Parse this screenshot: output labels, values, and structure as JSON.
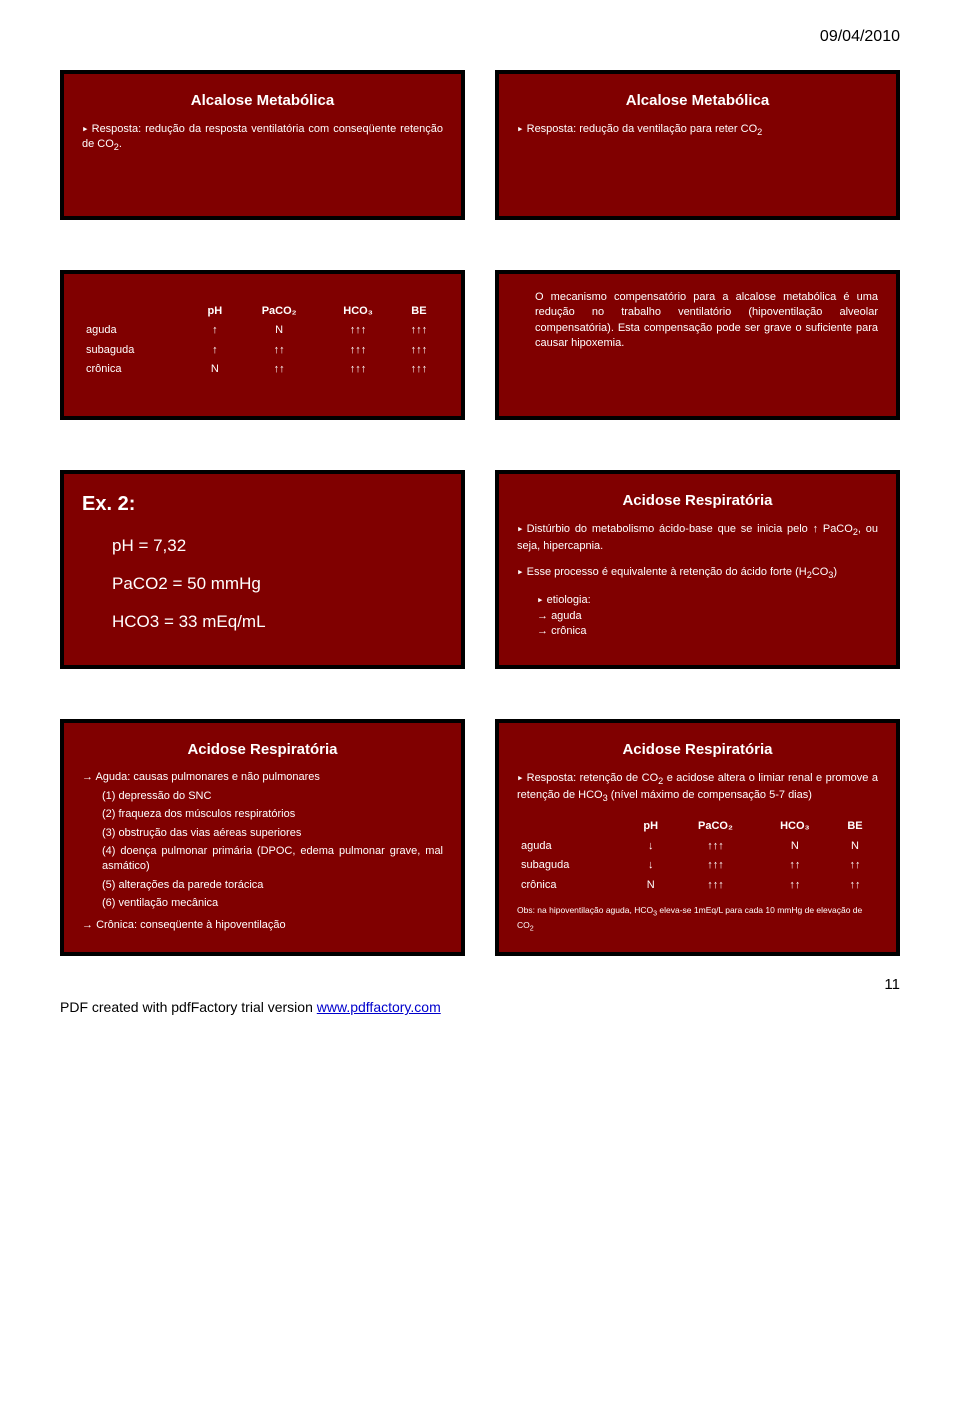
{
  "date": "09/04/2010",
  "pageNumber": "11",
  "pdfFooterText": "PDF created with pdfFactory trial version ",
  "pdfFooterLink": "www.pdffactory.com",
  "colors": {
    "slideBg": "#800000",
    "slideBorder": "#000000",
    "slideText": "#ffffff",
    "link": "#0000cc"
  },
  "slide1": {
    "title": "Alcalose Metabólica",
    "body": "Resposta: redução da resposta ventilatória com conseqüente retenção de CO",
    "sub": "2",
    "bodyEnd": "."
  },
  "slide2": {
    "title": "Alcalose Metabólica",
    "body": "Resposta: redução da ventilação para reter CO",
    "sub": "2"
  },
  "slide3": {
    "headers": [
      "",
      "pH",
      "PaCO₂",
      "HCO₃",
      "BE"
    ],
    "rows": [
      [
        "aguda",
        "↑",
        "N",
        "↑↑↑",
        "↑↑↑"
      ],
      [
        "subaguda",
        "↑",
        "↑↑",
        "↑↑↑",
        "↑↑↑"
      ],
      [
        "crônica",
        "N",
        "↑↑",
        "↑↑↑",
        "↑↑↑"
      ]
    ]
  },
  "slide4": {
    "body": "O mecanismo compensatório para a alcalose metabólica é uma redução no trabalho ventilatório (hipoventilação alveolar compensatória). Esta compensação pode ser grave o suficiente para causar hipoxemia."
  },
  "slide5": {
    "title": "Ex. 2:",
    "lines": [
      "pH = 7,32",
      "PaCO2 = 50 mmHg",
      "HCO3 = 33 mEq/mL"
    ]
  },
  "slide6": {
    "title": "Acidose Respiratória",
    "p1a": "Distúrbio do metabolismo ácido-base que se inicia pelo ↑ PaCO",
    "p1sub": "2",
    "p1b": ", ou seja, hipercapnia.",
    "p2a": "Esse processo é equivalente à retenção do ácido forte (H",
    "p2sub1": "2",
    "p2mid": "CO",
    "p2sub2": "3",
    "p2b": ")",
    "etioLabel": "etiologia:",
    "etioItems": [
      "aguda",
      "crônica"
    ]
  },
  "slide7": {
    "title": "Acidose Respiratória",
    "lead": "Aguda: causas pulmonares e não pulmonares",
    "items": [
      "(1) depressão do SNC",
      "(2) fraqueza dos músculos respiratórios",
      "(3) obstrução das vias aéreas superiores",
      "(4) doença pulmonar primária (DPOC, edema pulmonar grave, mal asmático)",
      "(5) alterações da parede torácica",
      "(6) ventilação mecânica"
    ],
    "tail": "Crônica: conseqüente à hipoventilação"
  },
  "slide8": {
    "title": "Acidose Respiratória",
    "pA": "Resposta: retenção de CO",
    "pAsub": "2",
    "pB": " e acidose altera o limiar renal e promove a retenção de HCO",
    "pBsub": "3",
    "pC": " (nível máximo de compensação 5-7 dias)",
    "headers": [
      "",
      "pH",
      "PaCO₂",
      "HCO₃",
      "BE"
    ],
    "rows": [
      [
        "aguda",
        "↓",
        "↑↑↑",
        "N",
        "N"
      ],
      [
        "subaguda",
        "↓",
        "↑↑↑",
        "↑↑",
        "↑↑"
      ],
      [
        "crônica",
        "N",
        "↑↑↑",
        "↑↑",
        "↑↑"
      ]
    ],
    "obsA": "Obs: na hipoventilação aguda, HCO",
    "obsSub1": "3",
    "obsB": " eleva-se 1mEq/L para cada 10 mmHg de elevação de CO",
    "obsSub2": "2"
  }
}
